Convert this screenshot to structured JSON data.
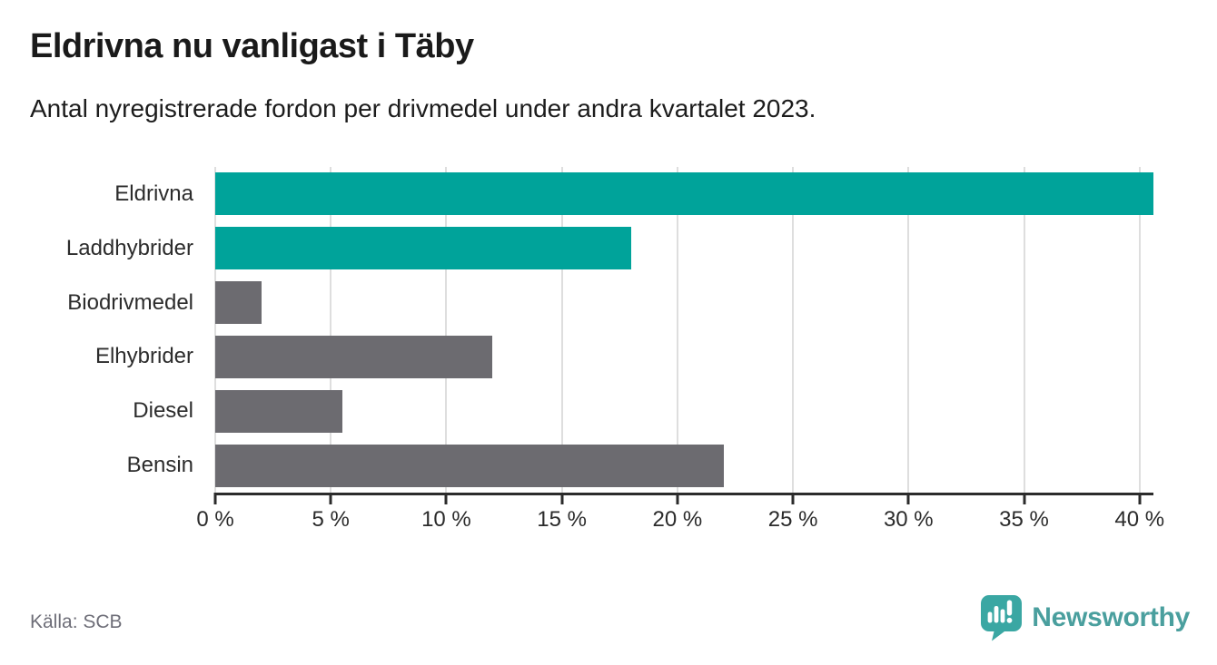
{
  "chart_data": {
    "type": "bar",
    "orientation": "horizontal",
    "title": "Eldrivna nu vanligast i Täby",
    "subtitle": "Antal nyregistrerade fordon per drivmedel under andra kvartalet 2023.",
    "categories": [
      "Eldrivna",
      "Laddhybrider",
      "Biodrivmedel",
      "Elhybrider",
      "Diesel",
      "Bensin"
    ],
    "values": [
      40.6,
      18,
      2,
      12,
      5.5,
      22
    ],
    "unit": "%",
    "bar_colors": [
      "#00a39a",
      "#00a39a",
      "#6c6b70",
      "#6c6b70",
      "#6c6b70",
      "#6c6b70"
    ],
    "xlim": [
      0,
      40.6
    ],
    "x_ticks": [
      0,
      5,
      10,
      15,
      20,
      25,
      30,
      35,
      40
    ],
    "x_tick_labels": [
      "0 %",
      "5 %",
      "10 %",
      "15 %",
      "20 %",
      "25 %",
      "30 %",
      "35 %",
      "40 %"
    ],
    "grid": "vertical-gridlines-on",
    "legend": "none"
  },
  "colors": {
    "accent_teal": "#00a39a",
    "bar_gray": "#6c6b70",
    "gridline": "#dedede",
    "axis": "#2b2b2b",
    "title_text": "#1a1a1a",
    "source_text": "#6e6e78",
    "brand_teal": "#4a9f9e",
    "logo_icon_teal": "#3aa7a3"
  },
  "footer": {
    "source": "Källa: SCB",
    "brand": "Newsworthy",
    "logo_icon": "speech-bubble-bar-chart-exclamation"
  }
}
